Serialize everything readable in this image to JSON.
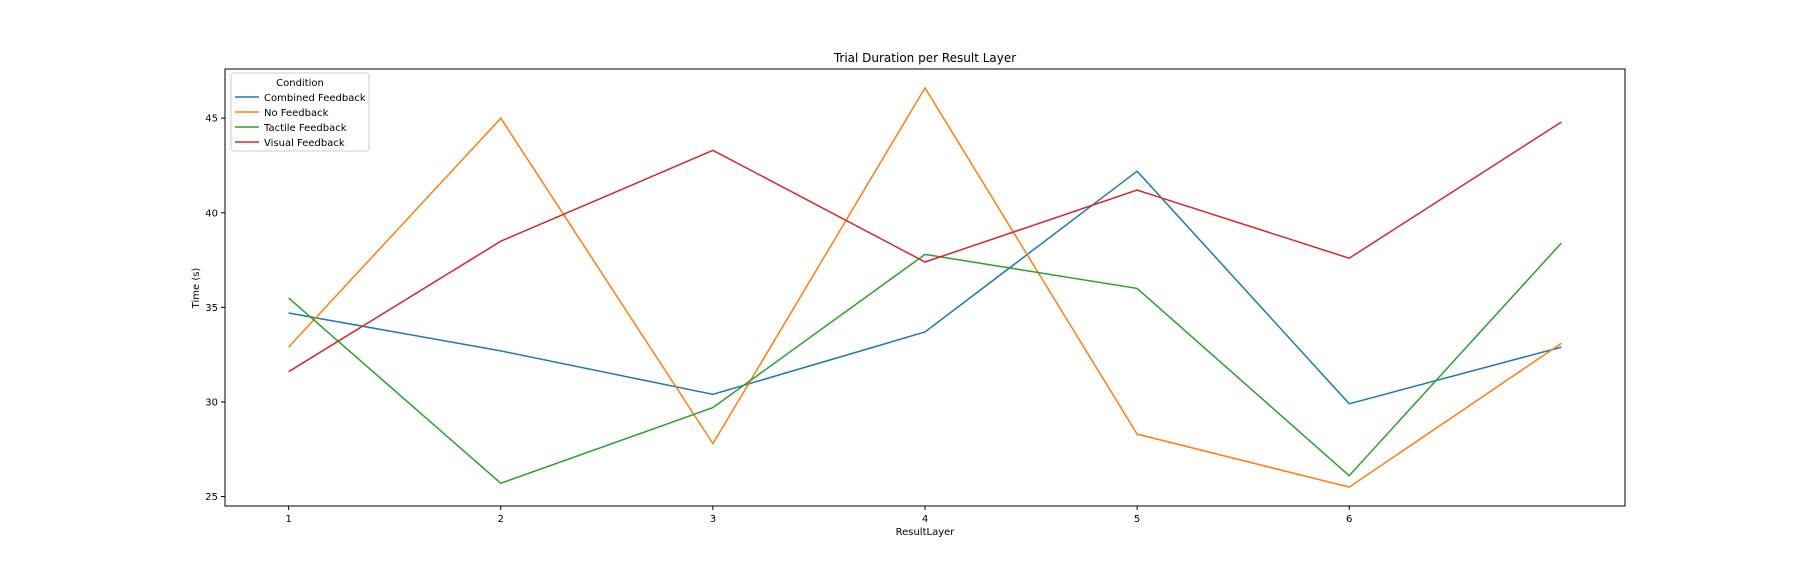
{
  "chart_data": {
    "type": "line",
    "title": "Trial Duration per Result Layer",
    "xlabel": "ResultLayer",
    "ylabel": "Time (s)",
    "x": [
      1,
      2,
      3,
      4,
      5,
      6,
      7
    ],
    "xticks": [
      "1",
      "2",
      "3",
      "4",
      "5",
      "6"
    ],
    "xlim": [
      0.7,
      7.3
    ],
    "ylim": [
      24.5,
      47.6
    ],
    "yticks": [
      25,
      30,
      35,
      40,
      45
    ],
    "grid": false,
    "legend": {
      "title": "Condition",
      "position": "top-left"
    },
    "series": [
      {
        "name": "Combined Feedback",
        "color": "#1f77b4",
        "values": [
          34.7,
          32.7,
          30.4,
          33.7,
          42.2,
          29.9,
          32.9
        ]
      },
      {
        "name": "No Feedback",
        "color": "#ff7f0e",
        "values": [
          32.9,
          45.0,
          27.8,
          46.6,
          28.3,
          25.5,
          33.1
        ]
      },
      {
        "name": "Tactile Feedback",
        "color": "#2ca02c",
        "values": [
          35.5,
          25.7,
          29.7,
          37.8,
          36.0,
          26.1,
          38.4
        ]
      },
      {
        "name": "Visual Feedback",
        "color": "#d62728",
        "values": [
          31.6,
          38.5,
          43.3,
          37.4,
          41.2,
          37.6,
          44.8
        ]
      }
    ]
  }
}
